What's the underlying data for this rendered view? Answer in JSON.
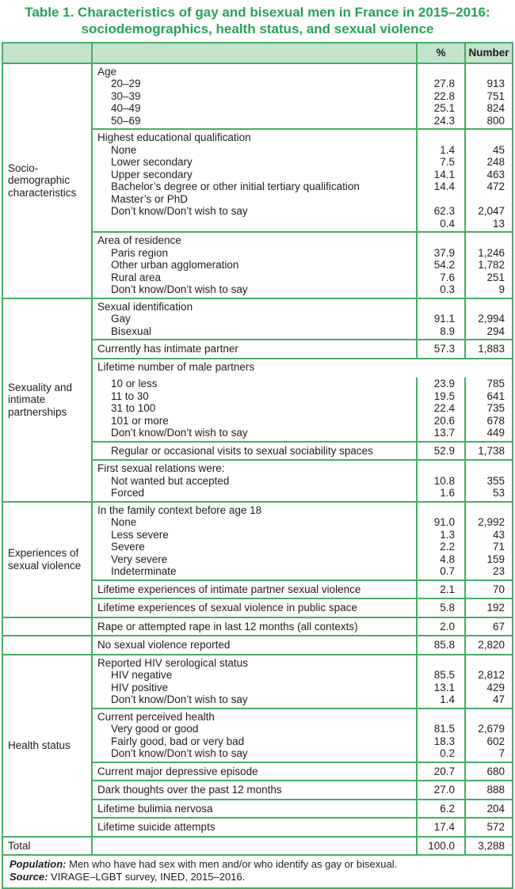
{
  "title": {
    "line1": "Table 1. Characteristics of gay and bisexual men in France in 2015–2016:",
    "line2": "sociodemographics, health status, and sexual violence"
  },
  "columns": {
    "percent": "%",
    "number": "Number"
  },
  "colors": {
    "border_green": "#47ad66",
    "header_bg": "#c3e4cc",
    "title_green": "#28a05a",
    "text": "#1d1d1b"
  },
  "groups": [
    {
      "label": "Socio-\ndemographic\ncharacteristics",
      "blocks": [
        {
          "rows": [
            {
              "label": "Age",
              "indent": false
            },
            {
              "label": "20–29",
              "indent": true,
              "pct": "27.8",
              "num": "913"
            },
            {
              "label": "30–39",
              "indent": true,
              "pct": "22.8",
              "num": "751"
            },
            {
              "label": "40–49",
              "indent": true,
              "pct": "25.1",
              "num": "824"
            },
            {
              "label": "50–69",
              "indent": true,
              "pct": "24.3",
              "num": "800"
            }
          ]
        },
        {
          "rows": [
            {
              "label": "Highest educational qualification",
              "indent": false
            },
            {
              "label": "None",
              "indent": true,
              "pct": "1.4",
              "num": "45"
            },
            {
              "label": "Lower secondary",
              "indent": true,
              "pct": "7.5",
              "num": "248"
            },
            {
              "label": "Upper secondary",
              "indent": true,
              "pct": "14.1",
              "num": "463"
            },
            {
              "label": "Bachelor’s degree or other initial tertiary qualification",
              "indent": true,
              "pct": "14.4",
              "num": "472"
            },
            {
              "label": "Master’s or PhD",
              "indent": true,
              "pct": "",
              "num": ""
            },
            {
              "label": "Don’t know/Don’t wish to say",
              "indent": true,
              "pct": "62.3",
              "num": "2,047"
            },
            {
              "label": "",
              "indent": true,
              "pct": "0.4",
              "num": "13"
            }
          ]
        },
        {
          "rows": [
            {
              "label": "Area of residence",
              "indent": false
            },
            {
              "label": "Paris region",
              "indent": true,
              "pct": "37.9",
              "num": "1,246"
            },
            {
              "label": "Other urban agglomeration",
              "indent": true,
              "pct": "54.2",
              "num": "1,782"
            },
            {
              "label": "Rural area",
              "indent": true,
              "pct": "7.6",
              "num": "251"
            },
            {
              "label": "Don’t know/Don’t wish to say",
              "indent": true,
              "pct": "0.3",
              "num": "9"
            }
          ]
        }
      ]
    },
    {
      "label": "Sexuality and\nintimate\npartnerships",
      "blocks": [
        {
          "rows": [
            {
              "label": "Sexual identification",
              "indent": false
            },
            {
              "label": "Gay",
              "indent": true,
              "pct": "91.1",
              "num": "2,994"
            },
            {
              "label": "Bisexual",
              "indent": true,
              "pct": "8.9",
              "num": "294"
            }
          ]
        },
        {
          "rows": [
            {
              "label": "Currently has intimate partner",
              "indent": false,
              "pct": "57.3",
              "num": "1,883"
            }
          ]
        },
        {
          "span_header": true,
          "rows": [
            {
              "label": "Lifetime number of male partners",
              "indent": false
            },
            {
              "label": "10 or less",
              "indent": true,
              "pct": "23.9",
              "num": "785"
            },
            {
              "label": "11 to 30",
              "indent": true,
              "pct": "19.5",
              "num": "641"
            },
            {
              "label": "31 to 100",
              "indent": true,
              "pct": "22.4",
              "num": "735"
            },
            {
              "label": "101 or more",
              "indent": true,
              "pct": "20.6",
              "num": "678"
            },
            {
              "label": "Don’t know/Don’t wish to say",
              "indent": true,
              "pct": "13.7",
              "num": "449"
            }
          ]
        },
        {
          "rows": [
            {
              "label": "Regular or occasional visits to sexual sociability spaces",
              "indent": true,
              "pct": "52.9",
              "num": "1,738"
            }
          ]
        },
        {
          "rows": [
            {
              "label": "First sexual relations were:",
              "indent": false
            },
            {
              "label": "Not wanted but accepted",
              "indent": true,
              "pct": "10.8",
              "num": "355"
            },
            {
              "label": "Forced",
              "indent": true,
              "pct": "1.6",
              "num": "53"
            }
          ]
        }
      ]
    },
    {
      "label": "Experiences of\nsexual violence",
      "blocks": [
        {
          "rows": [
            {
              "label": "In the family context before age 18",
              "indent": false
            },
            {
              "label": "None",
              "indent": true,
              "pct": "91.0",
              "num": "2,992"
            },
            {
              "label": "Less severe",
              "indent": true,
              "pct": "1.3",
              "num": "43"
            },
            {
              "label": "Severe",
              "indent": true,
              "pct": "2.2",
              "num": "71"
            },
            {
              "label": "Very severe",
              "indent": true,
              "pct": "4.8",
              "num": "159"
            },
            {
              "label": "Indeterminate",
              "indent": true,
              "pct": "0.7",
              "num": "23"
            }
          ]
        },
        {
          "rows": [
            {
              "label": "Lifetime experiences of intimate partner sexual violence",
              "indent": false,
              "pct": "2.1",
              "num": "70"
            }
          ]
        },
        {
          "rows": [
            {
              "label": "Lifetime experiences of sexual violence in public space",
              "indent": false,
              "pct": "5.8",
              "num": "192"
            }
          ]
        }
      ]
    },
    {
      "label": "",
      "blocks": [
        {
          "rows": [
            {
              "label": "Rape or attempted rape in last 12 months (all contexts)",
              "indent": false,
              "pct": "2.0",
              "num": "67"
            }
          ]
        }
      ]
    },
    {
      "label": "",
      "blocks": [
        {
          "rows": [
            {
              "label": "No sexual violence reported",
              "indent": false,
              "pct": "85.8",
              "num": "2,820"
            }
          ]
        }
      ]
    },
    {
      "label": "Health status",
      "blocks": [
        {
          "rows": [
            {
              "label": "Reported HIV serological status",
              "indent": false
            },
            {
              "label": "HIV negative",
              "indent": true,
              "pct": "85.5",
              "num": "2,812"
            },
            {
              "label": "HIV positive",
              "indent": true,
              "pct": "13.1",
              "num": "429"
            },
            {
              "label": "Don’t know/Don’t wish to say",
              "indent": true,
              "pct": "1.4",
              "num": "47"
            }
          ]
        },
        {
          "rows": [
            {
              "label": "Current perceived health",
              "indent": false
            },
            {
              "label": "Very good or good",
              "indent": true,
              "pct": "81.5",
              "num": "2,679"
            },
            {
              "label": "Fairly good, bad or very bad",
              "indent": true,
              "pct": "18.3",
              "num": "602"
            },
            {
              "label": "Don’t know/Don’t wish to say",
              "indent": true,
              "pct": "0.2",
              "num": "7"
            }
          ]
        },
        {
          "rows": [
            {
              "label": "Current major depressive episode",
              "indent": false,
              "pct": "20.7",
              "num": "680"
            }
          ]
        },
        {
          "rows": [
            {
              "label": "Dark thoughts over the past 12 months",
              "indent": false,
              "pct": "27.0",
              "num": "888"
            }
          ]
        },
        {
          "rows": [
            {
              "label": "Lifetime bulimia nervosa",
              "indent": false,
              "pct": "6.2",
              "num": "204"
            }
          ]
        },
        {
          "rows": [
            {
              "label": "Lifetime suicide attempts",
              "indent": false,
              "pct": "17.4",
              "num": "572"
            }
          ]
        }
      ]
    },
    {
      "label": "Total",
      "blocks": [
        {
          "rows": [
            {
              "label": "",
              "indent": false,
              "pct": "100.0",
              "num": "3,288"
            }
          ]
        }
      ]
    }
  ],
  "notes": {
    "population_label": "Population:",
    "population_text": "Men who have had sex with men and/or who identify as gay or bisexual.",
    "source_label": "Source:",
    "source_text": "VIRAGE–LGBT survey, INED, 2015–2016."
  }
}
